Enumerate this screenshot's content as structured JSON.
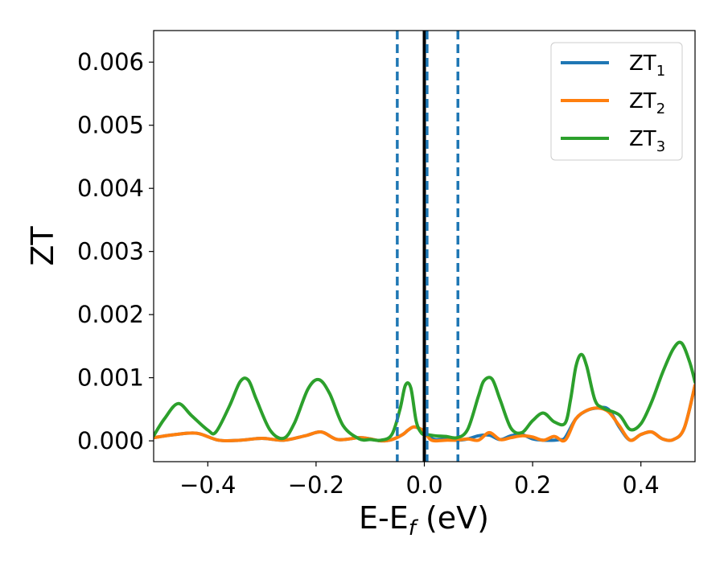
{
  "chart_data": {
    "type": "line",
    "xlabel_main": "E-E",
    "xlabel_sub": "f",
    "xlabel_unit": " (eV)",
    "ylabel": "ZT",
    "xlim": [
      -0.5,
      0.5
    ],
    "ylim": [
      -0.00033,
      0.0065
    ],
    "x_ticks": [
      -0.4,
      -0.2,
      0.0,
      0.2,
      0.4
    ],
    "x_tick_labels": [
      "−0.4",
      "−0.2",
      "0.0",
      "0.2",
      "0.4"
    ],
    "y_ticks": [
      0.0,
      0.001,
      0.002,
      0.003,
      0.004,
      0.005,
      0.006
    ],
    "y_tick_labels": [
      "0.000",
      "0.001",
      "0.002",
      "0.003",
      "0.004",
      "0.005",
      "0.006"
    ],
    "grid": false,
    "legend_position": "top-right",
    "series": [
      {
        "name": "ZT",
        "name_sub": "1",
        "color": "#1f77b4",
        "x": [
          -0.5,
          -0.46,
          -0.42,
          -0.38,
          -0.34,
          -0.3,
          -0.26,
          -0.22,
          -0.19,
          -0.16,
          -0.12,
          -0.1,
          -0.08,
          -0.06,
          -0.04,
          -0.03,
          -0.02,
          -0.01,
          0.0,
          0.005,
          0.01,
          0.02,
          0.04,
          0.06,
          0.08,
          0.1,
          0.12,
          0.14,
          0.16,
          0.18,
          0.2,
          0.22,
          0.24,
          0.25,
          0.26,
          0.28,
          0.3,
          0.32,
          0.34,
          0.36,
          0.38,
          0.4,
          0.42,
          0.44,
          0.46,
          0.48,
          0.5
        ],
        "y": [
          5e-05,
          0.0001,
          0.00012,
          1e-05,
          1e-05,
          4e-05,
          1e-05,
          8e-05,
          0.00014,
          2e-05,
          5e-05,
          3e-05,
          0.0,
          2e-05,
          0.0001,
          0.00017,
          0.00022,
          0.0002,
          0.00015,
          0.0001,
          6e-05,
          2e-05,
          3e-05,
          1e-05,
          3e-05,
          8e-05,
          9e-05,
          2e-05,
          8e-05,
          0.0001,
          3e-05,
          1e-05,
          1e-05,
          2e-05,
          5e-05,
          0.00035,
          0.00048,
          0.00052,
          0.0005,
          0.00022,
          1e-05,
          0.0001,
          0.00014,
          3e-05,
          2e-05,
          0.0002,
          0.00088
        ]
      },
      {
        "name": "ZT",
        "name_sub": "2",
        "color": "#ff7f0e",
        "x": [
          -0.5,
          -0.46,
          -0.42,
          -0.38,
          -0.34,
          -0.3,
          -0.26,
          -0.22,
          -0.19,
          -0.16,
          -0.12,
          -0.1,
          -0.08,
          -0.06,
          -0.04,
          -0.03,
          -0.02,
          -0.01,
          0.0,
          0.01,
          0.02,
          0.04,
          0.06,
          0.08,
          0.1,
          0.12,
          0.14,
          0.16,
          0.18,
          0.2,
          0.22,
          0.24,
          0.26,
          0.28,
          0.3,
          0.32,
          0.34,
          0.36,
          0.38,
          0.4,
          0.42,
          0.44,
          0.46,
          0.48,
          0.5
        ],
        "y": [
          5e-05,
          0.0001,
          0.00012,
          1e-05,
          1e-05,
          4e-05,
          1e-05,
          8e-05,
          0.00014,
          2e-05,
          5e-05,
          3e-05,
          0.0,
          2e-05,
          0.0001,
          0.00017,
          0.00022,
          0.0002,
          0.00015,
          3e-05,
          0.0,
          1e-05,
          1e-05,
          3e-05,
          1e-05,
          0.00013,
          2e-05,
          5e-05,
          8e-05,
          6e-05,
          1e-05,
          7e-05,
          1e-05,
          0.00035,
          0.00048,
          0.00052,
          0.00046,
          0.00024,
          1e-05,
          0.0001,
          0.00014,
          3e-05,
          2e-05,
          0.0002,
          0.00088
        ]
      },
      {
        "name": "ZT",
        "name_sub": "3",
        "color": "#2ca02c",
        "x": [
          -0.5,
          -0.48,
          -0.455,
          -0.43,
          -0.4,
          -0.385,
          -0.36,
          -0.34,
          -0.325,
          -0.31,
          -0.285,
          -0.26,
          -0.24,
          -0.215,
          -0.195,
          -0.175,
          -0.15,
          -0.12,
          -0.1,
          -0.08,
          -0.06,
          -0.045,
          -0.035,
          -0.025,
          -0.015,
          -0.005,
          0.005,
          0.02,
          0.04,
          0.06,
          0.08,
          0.1,
          0.11,
          0.125,
          0.14,
          0.16,
          0.18,
          0.2,
          0.22,
          0.24,
          0.26,
          0.27,
          0.28,
          0.29,
          0.3,
          0.315,
          0.33,
          0.36,
          0.38,
          0.4,
          0.42,
          0.44,
          0.46,
          0.475,
          0.49,
          0.5
        ],
        "y": [
          8e-05,
          0.00035,
          0.00059,
          0.0004,
          0.00017,
          0.00014,
          0.00055,
          0.00094,
          0.00096,
          0.00065,
          0.00017,
          4e-05,
          0.00028,
          0.00082,
          0.00097,
          0.00075,
          0.00024,
          3e-05,
          2e-05,
          1e-05,
          0.0001,
          0.0005,
          0.00088,
          0.00084,
          0.00031,
          0.00012,
          0.0001,
          8e-05,
          7e-05,
          5e-05,
          0.00018,
          0.00071,
          0.00095,
          0.00098,
          0.00065,
          0.0002,
          0.00013,
          0.00032,
          0.00044,
          0.0003,
          0.00028,
          0.00065,
          0.00118,
          0.00137,
          0.00118,
          0.00065,
          0.00052,
          0.00041,
          0.00018,
          0.00027,
          0.00062,
          0.00108,
          0.00146,
          0.00155,
          0.00125,
          0.00093
        ]
      }
    ],
    "vlines": [
      {
        "x": 0.0,
        "color": "#000000",
        "style": "solid"
      },
      {
        "x": -0.05,
        "color": "#1f77b4",
        "style": "dashed"
      },
      {
        "x": 0.005,
        "color": "#1f77b4",
        "style": "dashed"
      },
      {
        "x": 0.062,
        "color": "#1f77b4",
        "style": "dashed"
      }
    ]
  }
}
